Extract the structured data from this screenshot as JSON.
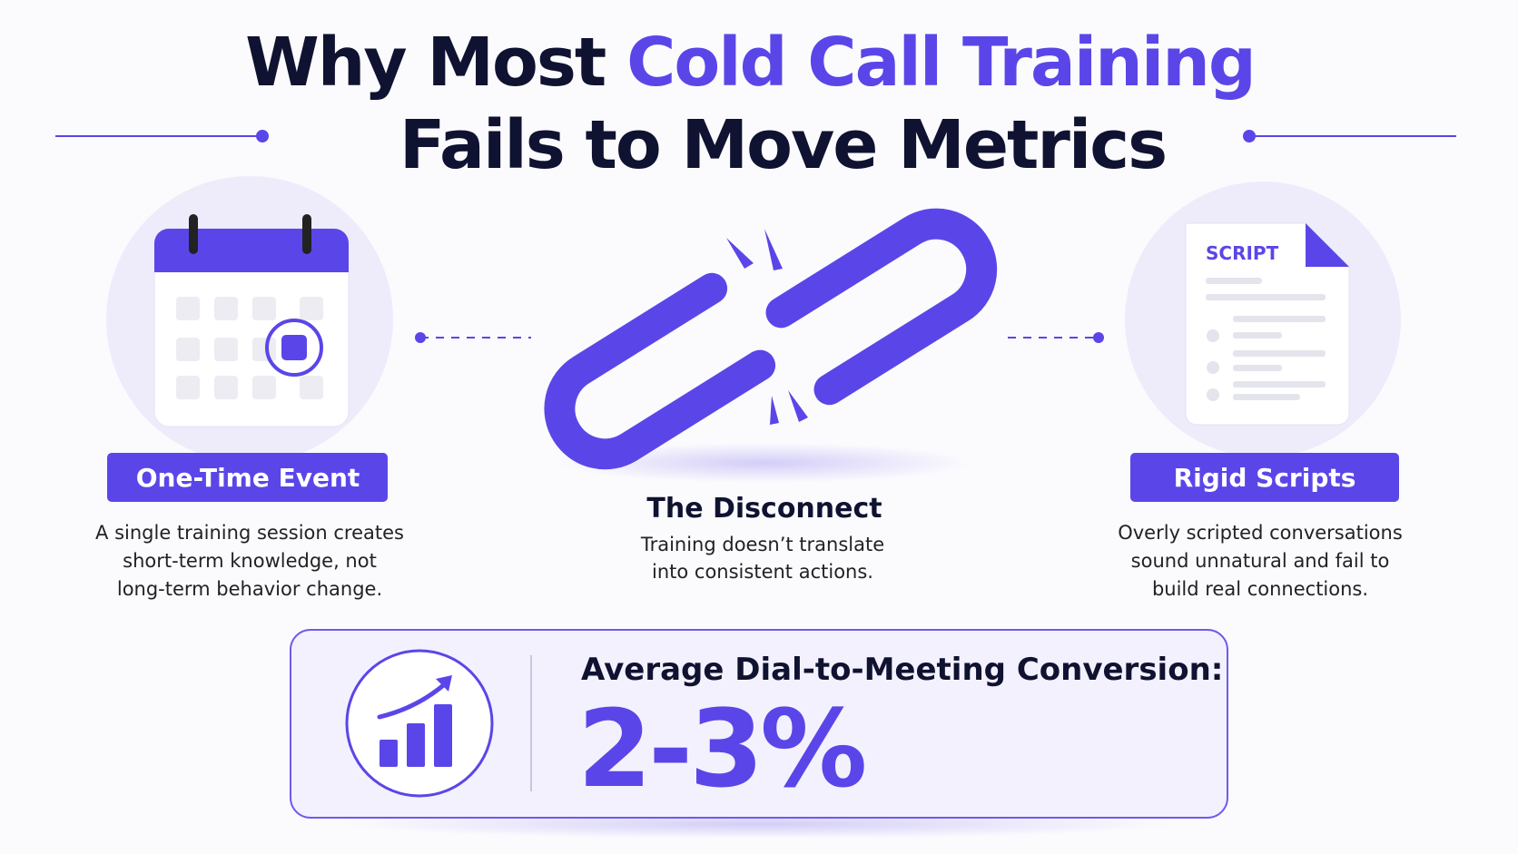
{
  "title": {
    "plain": "Why Most ",
    "highlight": "Cold Call Training",
    "line2": "Fails to Move Metrics"
  },
  "left": {
    "label": "One-Time Event",
    "lines": [
      "A single training session creates",
      "short-term knowledge, not",
      "long-term behavior change."
    ]
  },
  "center": {
    "heading": "The Disconnect",
    "lines": [
      "Training doesn’t translate",
      "into consistent actions."
    ]
  },
  "right": {
    "doc_label": "SCRIPT",
    "label": "Rigid Scripts",
    "lines": [
      "Overly scripted conversations",
      "sound unnatural and fail to",
      "build real connections."
    ]
  },
  "stat": {
    "label": "Average Dial-to-Meeting Conversion:",
    "value": "2-3%"
  }
}
